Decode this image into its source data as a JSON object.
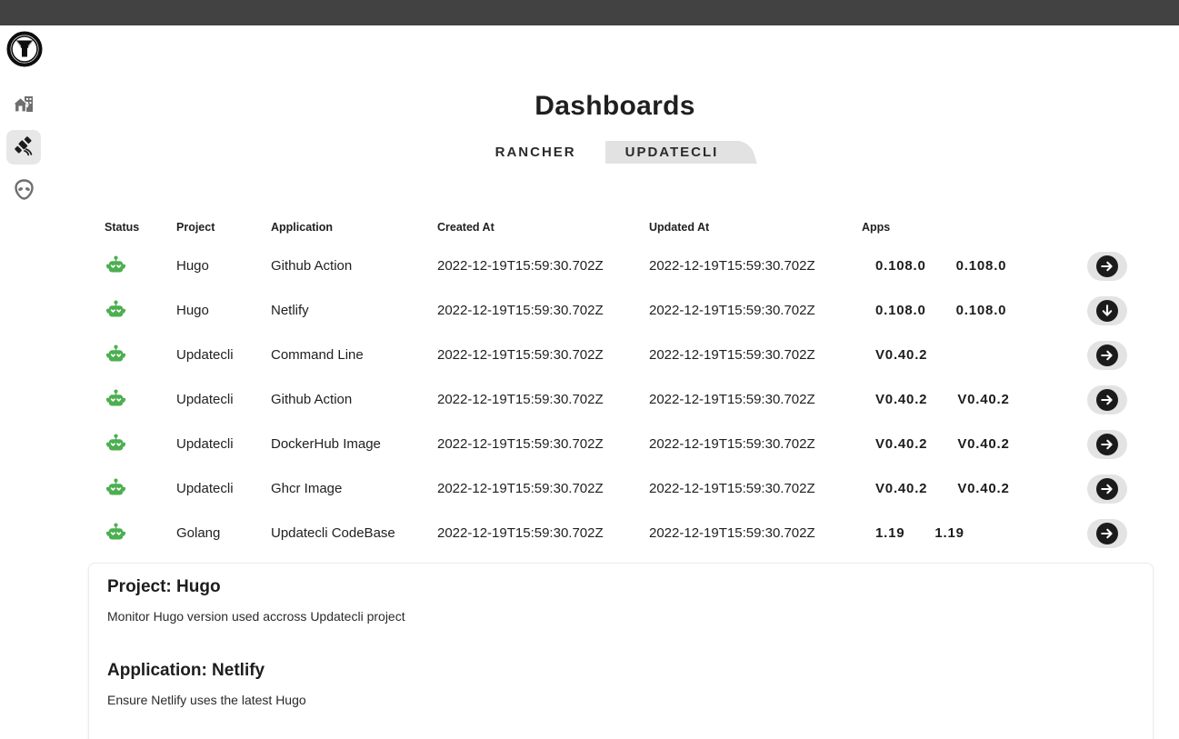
{
  "colors": {
    "topbar": "#424242",
    "tab_background": "#e2e2e2",
    "status_green": "#4caf50",
    "button_background": "#e3e3e3",
    "button_circle": "#1b1b1b"
  },
  "sidebar": {
    "logo": "updatecli-logo",
    "items": [
      {
        "icon": "home-building-icon",
        "selected": false
      },
      {
        "icon": "satellite-icon",
        "selected": true
      },
      {
        "icon": "alien-icon",
        "selected": false
      }
    ]
  },
  "page": {
    "title": "Dashboards"
  },
  "tabs": {
    "rancher": "RANCHER",
    "updatecli": "UPDATECLI"
  },
  "table": {
    "headers": {
      "status": "Status",
      "project": "Project",
      "application": "Application",
      "created_at": "Created At",
      "updated_at": "Updated At",
      "apps": "Apps"
    },
    "rows": [
      {
        "status": "ok",
        "project": "Hugo",
        "application": "Github Action",
        "created_at": "2022-12-19T15:59:30.702Z",
        "updated_at": "2022-12-19T15:59:30.702Z",
        "versions": [
          "0.108.0",
          "0.108.0"
        ],
        "action": "right"
      },
      {
        "status": "ok",
        "project": "Hugo",
        "application": "Netlify",
        "created_at": "2022-12-19T15:59:30.702Z",
        "updated_at": "2022-12-19T15:59:30.702Z",
        "versions": [
          "0.108.0",
          "0.108.0"
        ],
        "action": "down"
      },
      {
        "status": "ok",
        "project": "Updatecli",
        "application": "Command Line",
        "created_at": "2022-12-19T15:59:30.702Z",
        "updated_at": "2022-12-19T15:59:30.702Z",
        "versions": [
          "V0.40.2"
        ],
        "action": "right"
      },
      {
        "status": "ok",
        "project": "Updatecli",
        "application": "Github Action",
        "created_at": "2022-12-19T15:59:30.702Z",
        "updated_at": "2022-12-19T15:59:30.702Z",
        "versions": [
          "V0.40.2",
          "V0.40.2"
        ],
        "action": "right"
      },
      {
        "status": "ok",
        "project": "Updatecli",
        "application": "DockerHub Image",
        "created_at": "2022-12-19T15:59:30.702Z",
        "updated_at": "2022-12-19T15:59:30.702Z",
        "versions": [
          "V0.40.2",
          "V0.40.2"
        ],
        "action": "right"
      },
      {
        "status": "ok",
        "project": "Updatecli",
        "application": "Ghcr Image",
        "created_at": "2022-12-19T15:59:30.702Z",
        "updated_at": "2022-12-19T15:59:30.702Z",
        "versions": [
          "V0.40.2",
          "V0.40.2"
        ],
        "action": "right"
      },
      {
        "status": "ok",
        "project": "Golang",
        "application": "Updatecli CodeBase",
        "created_at": "2022-12-19T15:59:30.702Z",
        "updated_at": "2022-12-19T15:59:30.702Z",
        "versions": [
          "1.19",
          "1.19"
        ],
        "action": "right"
      }
    ]
  },
  "details": {
    "project_heading": "Project: Hugo",
    "project_description": "Monitor Hugo version used accross Updatecli project",
    "application_heading": "Application: Netlify",
    "application_description": "Ensure Netlify uses the latest Hugo"
  }
}
